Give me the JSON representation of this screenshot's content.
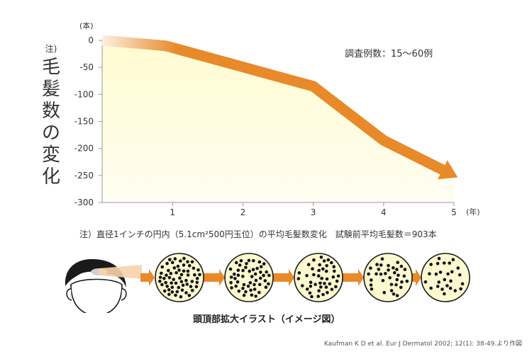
{
  "chart_data": {
    "type": "line",
    "y_axis_label_chars": [
      "毛",
      "髪",
      "数",
      "の",
      "変",
      "化"
    ],
    "y_axis_label_note": "注)",
    "y_unit": "(本)",
    "x_unit": "(年)",
    "x": [
      0,
      0.9,
      3,
      4,
      5
    ],
    "y": [
      0,
      -10,
      -85,
      -185,
      -250
    ],
    "xticks": [
      "1",
      "2",
      "3",
      "4",
      "5"
    ],
    "xtick_values": [
      1,
      2,
      3,
      4,
      5
    ],
    "yticks": [
      "0",
      "-50",
      "-100",
      "-150",
      "-200",
      "-250",
      "-300"
    ],
    "ytick_values": [
      0,
      -50,
      -100,
      -150,
      -200,
      -250,
      -300
    ],
    "xlim": [
      0,
      5
    ],
    "ylim": [
      -300,
      0
    ],
    "annotation": "調査例数：15〜60例",
    "line_color": "#e8892a",
    "fill_color": "#fffbd2"
  },
  "footnote": "注）直径1インチの円内（5.1cm²500円玉位）の平均毛髪数変化　試験前平均毛髪数＝903本",
  "illustration": {
    "caption": "頭頂部拡大イラスト（イメージ図）",
    "circle_fill": "#fcf8cf",
    "dot_counts": [
      60,
      50,
      42,
      34,
      26
    ]
  },
  "source": "Kaufman K D et al. Eur J Dermatol 2002; 12(1): 38-49.より作図"
}
